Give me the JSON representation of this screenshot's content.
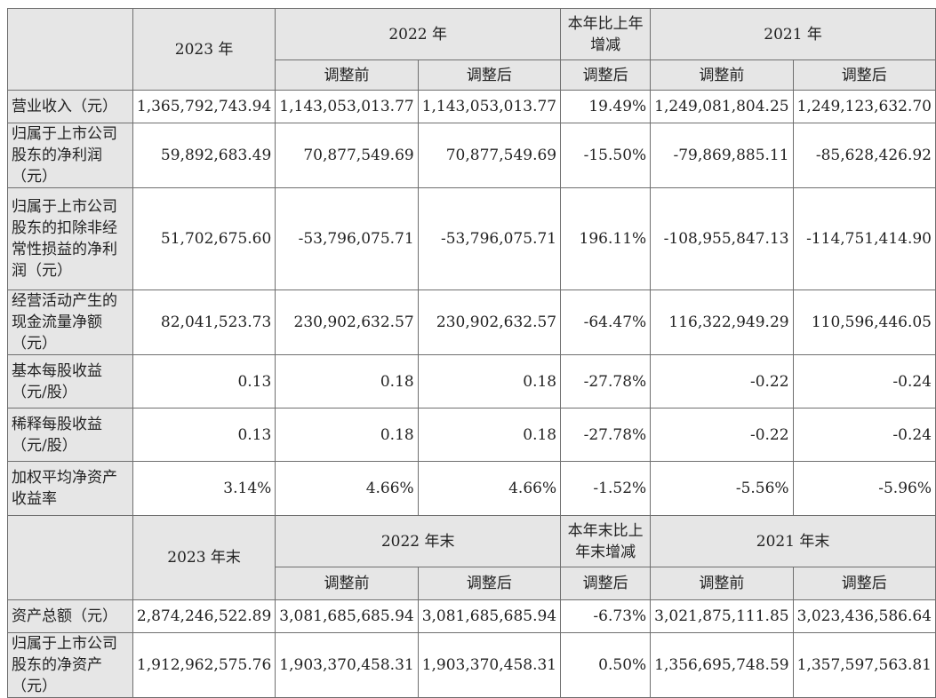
{
  "header_top": {
    "y2023": "2023 年",
    "y2022": "2022 年",
    "change": "本年比上年增减",
    "y2021": "2021 年",
    "before": "调整前",
    "after": "调整后"
  },
  "rows_top": [
    {
      "label": "营业收入（元）",
      "values": [
        "1,365,792,743.94",
        "1,143,053,013.77",
        "1,143,053,013.77",
        "19.49%",
        "1,249,081,804.25",
        "1,249,123,632.70"
      ]
    },
    {
      "label": "归属于上市公司股东的净利润（元）",
      "values": [
        "59,892,683.49",
        "70,877,549.69",
        "70,877,549.69",
        "-15.50%",
        "-79,869,885.11",
        "-85,628,426.92"
      ]
    },
    {
      "label": "归属于上市公司股东的扣除非经常性损益的净利润（元）",
      "values": [
        "51,702,675.60",
        "-53,796,075.71",
        "-53,796,075.71",
        "196.11%",
        "-108,955,847.13",
        "-114,751,414.90"
      ]
    },
    {
      "label": "经营活动产生的现金流量净额（元）",
      "values": [
        "82,041,523.73",
        "230,902,632.57",
        "230,902,632.57",
        "-64.47%",
        "116,322,949.29",
        "110,596,446.05"
      ]
    },
    {
      "label": "基本每股收益（元/股）",
      "values": [
        "0.13",
        "0.18",
        "0.18",
        "-27.78%",
        "-0.22",
        "-0.24"
      ]
    },
    {
      "label": "稀释每股收益（元/股）",
      "values": [
        "0.13",
        "0.18",
        "0.18",
        "-27.78%",
        "-0.22",
        "-0.24"
      ]
    },
    {
      "label": "加权平均净资产收益率",
      "values": [
        "3.14%",
        "4.66%",
        "4.66%",
        "-1.52%",
        "-5.56%",
        "-5.96%"
      ]
    }
  ],
  "header_bottom": {
    "y2023": "2023 年末",
    "y2022": "2022 年末",
    "change": "本年末比上年末增减",
    "y2021": "2021 年末",
    "before": "调整前",
    "after": "调整后"
  },
  "rows_bottom": [
    {
      "label": "资产总额（元）",
      "values": [
        "2,874,246,522.89",
        "3,081,685,685.94",
        "3,081,685,685.94",
        "-6.73%",
        "3,021,875,111.85",
        "3,023,436,586.64"
      ]
    },
    {
      "label": "归属于上市公司股东的净资产（元）",
      "values": [
        "1,912,962,575.76",
        "1,903,370,458.31",
        "1,903,370,458.31",
        "0.50%",
        "1,356,695,748.59",
        "1,357,597,563.81"
      ]
    }
  ]
}
